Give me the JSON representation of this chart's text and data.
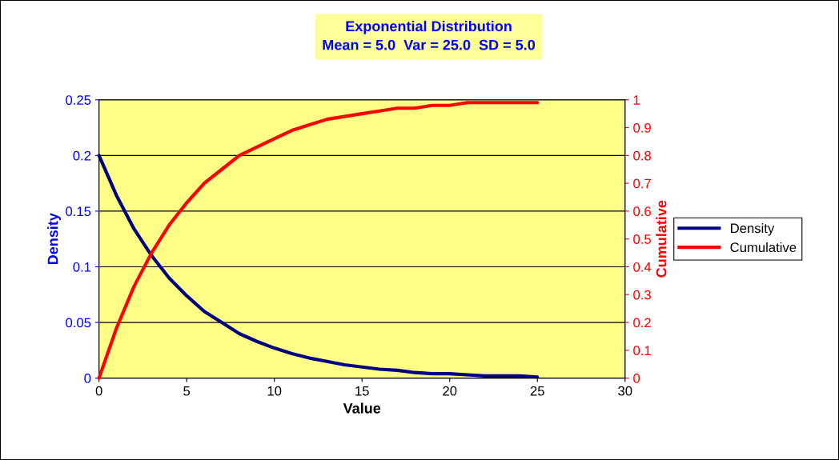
{
  "chart_data": {
    "type": "line",
    "title": "Exponential Distribution\nMean = 5.0  Var = 25.0  SD = 5.0",
    "xlabel": "Value",
    "ylabel": "Density",
    "y2label": "Cumulative",
    "x": [
      0,
      1,
      2,
      3,
      4,
      5,
      6,
      7,
      8,
      9,
      10,
      11,
      12,
      13,
      14,
      15,
      16,
      17,
      18,
      19,
      20,
      21,
      22,
      23,
      24,
      25
    ],
    "series": [
      {
        "name": "Density",
        "color": "#000080",
        "values": [
          0.2,
          0.164,
          0.134,
          0.11,
          0.09,
          0.074,
          0.06,
          0.05,
          0.04,
          0.033,
          0.027,
          0.022,
          0.018,
          0.015,
          0.012,
          0.01,
          0.008,
          0.007,
          0.005,
          0.004,
          0.004,
          0.003,
          0.002,
          0.002,
          0.002,
          0.001
        ]
      },
      {
        "name": "Cumulative",
        "color": "#ff0000",
        "axis": "y2",
        "values": [
          0,
          0.18,
          0.33,
          0.45,
          0.55,
          0.63,
          0.7,
          0.75,
          0.8,
          0.83,
          0.86,
          0.89,
          0.91,
          0.93,
          0.94,
          0.95,
          0.96,
          0.97,
          0.97,
          0.98,
          0.98,
          0.99,
          0.99,
          0.99,
          0.99,
          0.99
        ]
      }
    ],
    "xlim": [
      0,
      30
    ],
    "xticks": [
      0,
      5,
      10,
      15,
      20,
      25,
      30
    ],
    "ylim": [
      0,
      0.25
    ],
    "yticks": [
      0,
      0.05,
      0.1,
      0.15,
      0.2,
      0.25
    ],
    "y2lim": [
      0,
      1
    ],
    "y2ticks": [
      0,
      0.1,
      0.2,
      0.3,
      0.4,
      0.5,
      0.6,
      0.7,
      0.8,
      0.9,
      1
    ],
    "grid": "y",
    "legend": "right",
    "marker": "none",
    "line_style": "solid"
  }
}
